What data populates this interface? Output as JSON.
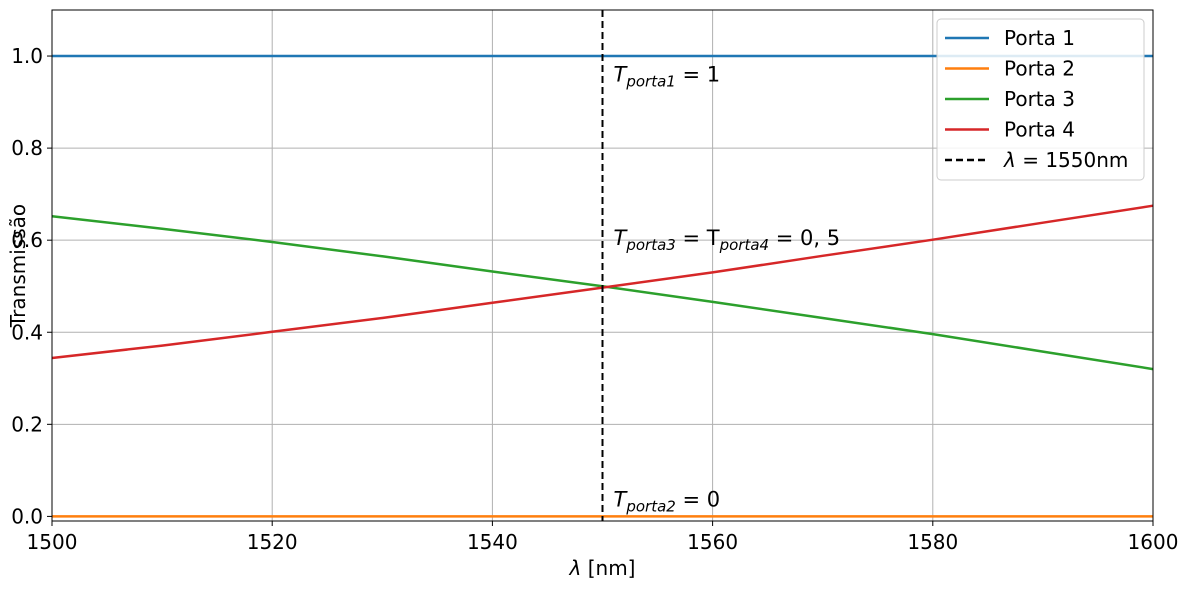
{
  "chart_data": {
    "type": "line",
    "xlabel": "λ [nm]",
    "ylabel": "Transmissão",
    "xlim": [
      1500,
      1600
    ],
    "ylim": [
      -0.01,
      1.1
    ],
    "x_ticks": [
      1500,
      1520,
      1540,
      1560,
      1580,
      1600
    ],
    "x_tick_labels": [
      "1500",
      "1520",
      "1540",
      "1560",
      "1580",
      "1600"
    ],
    "y_ticks": [
      0.0,
      0.2,
      0.4,
      0.6,
      0.8,
      1.0
    ],
    "y_tick_labels": [
      "0.0",
      "0.2",
      "0.4",
      "0.6",
      "0.8",
      "1.0"
    ],
    "grid": true,
    "legend_position": "top-right",
    "series": [
      {
        "name": "Porta 1",
        "color": "#1f77b4",
        "x": [
          1500,
          1600
        ],
        "y": [
          1.0,
          1.0
        ]
      },
      {
        "name": "Porta 2",
        "color": "#ff7f0e",
        "x": [
          1500,
          1600
        ],
        "y": [
          0.0,
          0.0
        ]
      },
      {
        "name": "Porta 3",
        "color": "#2ca02c",
        "x": [
          1500,
          1510,
          1520,
          1530,
          1540,
          1550,
          1560,
          1570,
          1580,
          1590,
          1600
        ],
        "y": [
          0.652,
          0.625,
          0.596,
          0.565,
          0.532,
          0.5,
          0.466,
          0.431,
          0.396,
          0.358,
          0.32
        ]
      },
      {
        "name": "Porta 4",
        "color": "#d62728",
        "x": [
          1500,
          1510,
          1520,
          1530,
          1540,
          1550,
          1560,
          1570,
          1580,
          1590,
          1600
        ],
        "y": [
          0.344,
          0.371,
          0.401,
          0.431,
          0.464,
          0.497,
          0.53,
          0.566,
          0.601,
          0.638,
          0.675
        ]
      }
    ],
    "vline": {
      "x": 1550,
      "label": "λ = 1550nm",
      "color": "#000000",
      "style": "dashed"
    },
    "annotations": [
      {
        "x": 1551,
        "y": 0.945,
        "main": "T",
        "sub": "porta1",
        "rest": " = 1"
      },
      {
        "x": 1551,
        "y": 0.59,
        "main": "T",
        "sub": "porta3",
        "mid_main": " = T",
        "mid_sub": "porta4",
        "rest": " = 0, 5"
      },
      {
        "x": 1551,
        "y": 0.022,
        "main": "T",
        "sub": "porta2",
        "rest": " = 0"
      }
    ]
  }
}
